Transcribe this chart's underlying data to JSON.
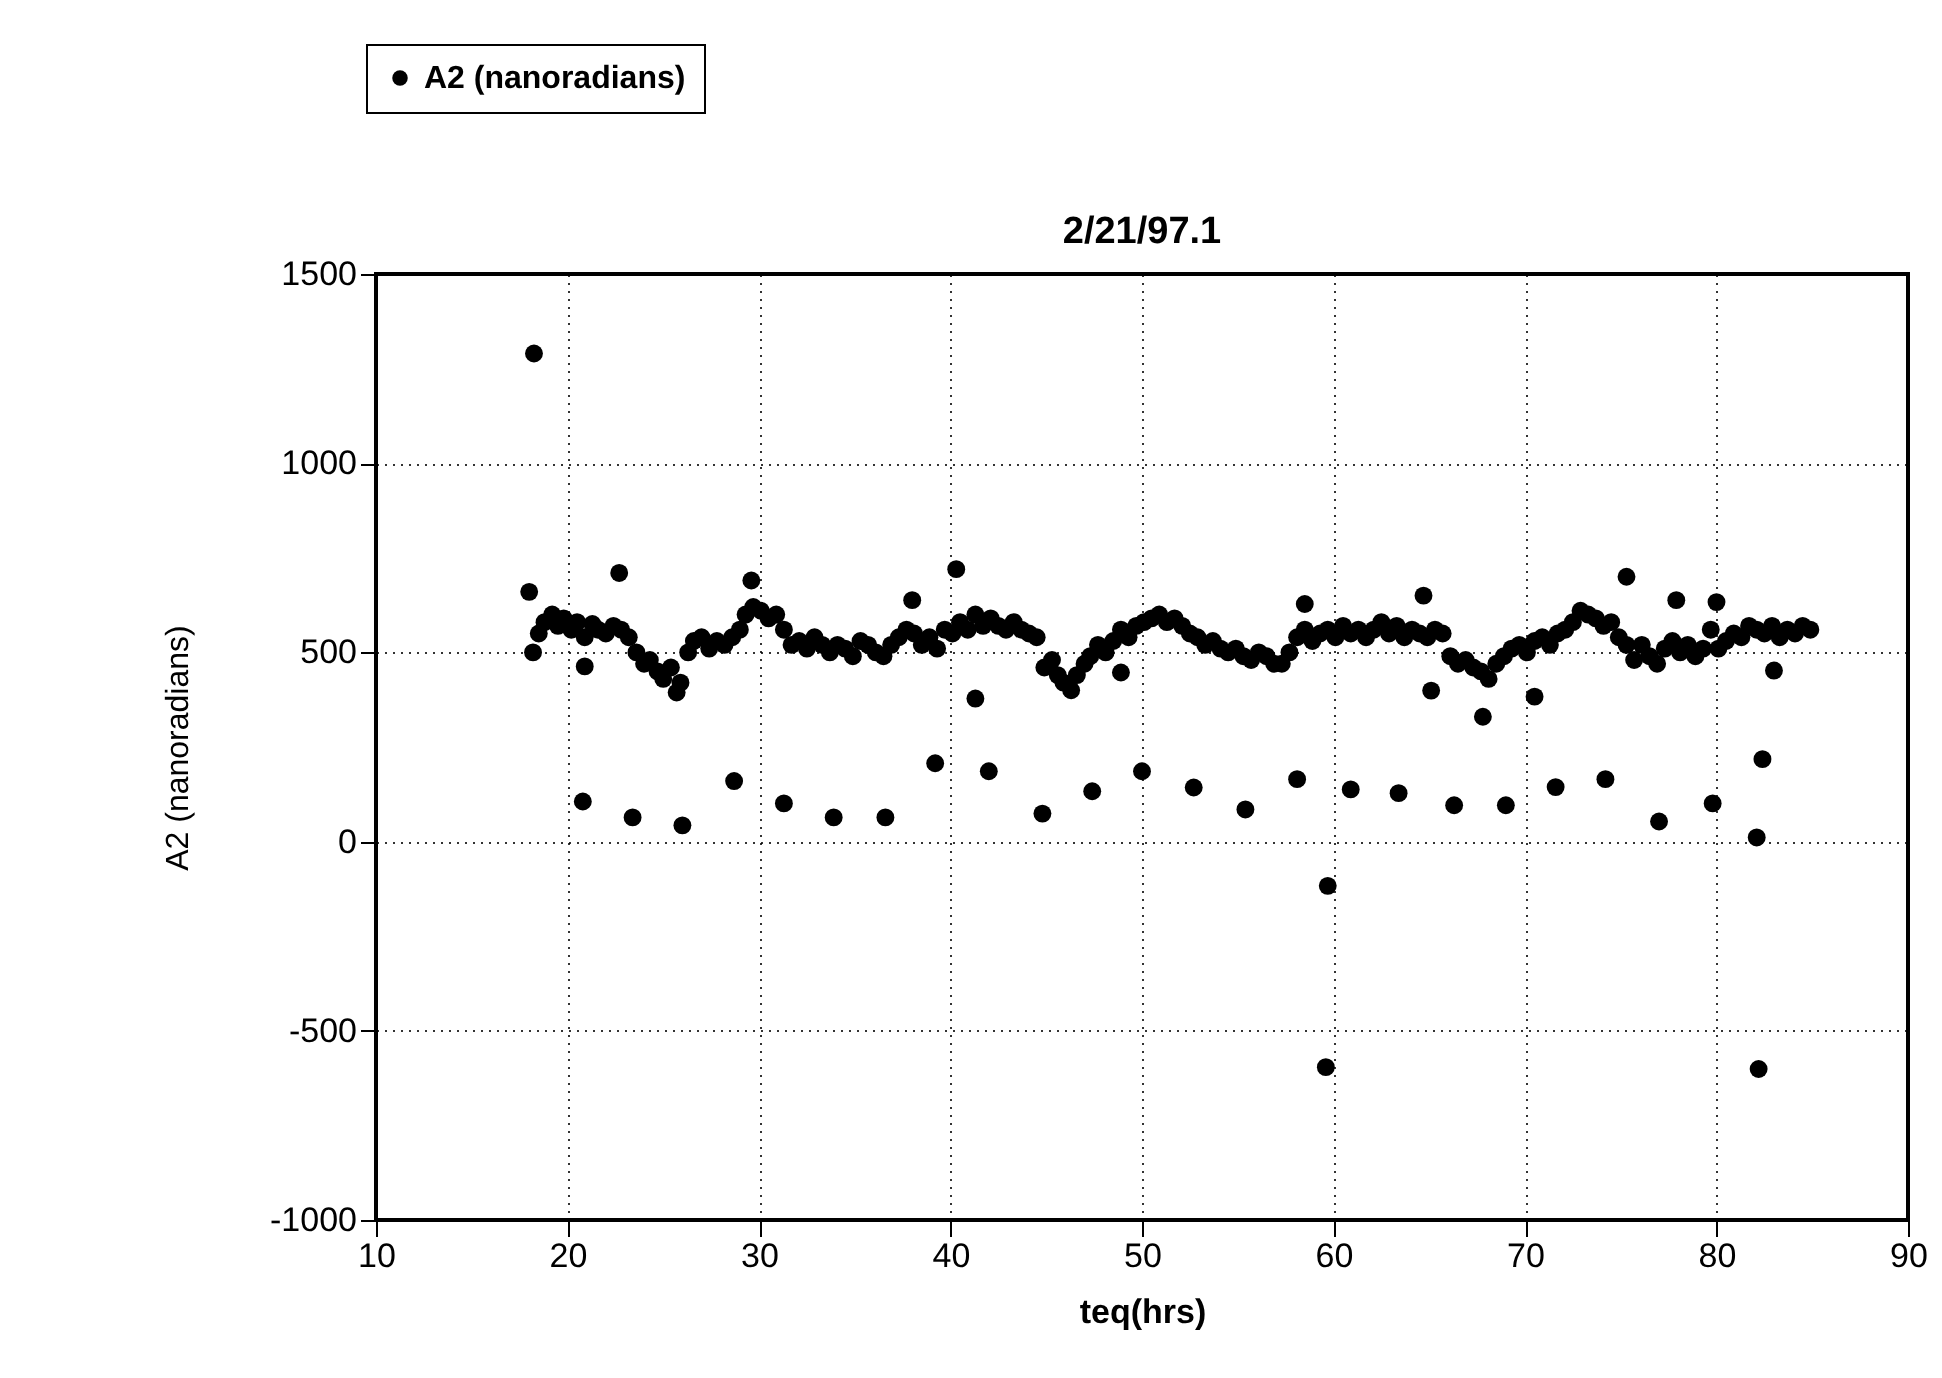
{
  "chart_data": {
    "type": "scatter",
    "title": "2/21/97.1",
    "xlabel": "teq(hrs)",
    "ylabel": "A2 (nanoradians)",
    "xlim": [
      10,
      90
    ],
    "xticks": [
      10,
      20,
      30,
      40,
      50,
      60,
      70,
      80,
      90
    ],
    "ylim": [
      -1000,
      1500
    ],
    "yticks": [
      -1000,
      -500,
      0,
      500,
      1000,
      1500
    ],
    "grid": true,
    "legend": "top left",
    "marker": "circle",
    "series": [
      {
        "name": "A2 (nanoradians)",
        "color": "#000000",
        "x": [
          18.2,
          18.5,
          18.8,
          19.2,
          19.5,
          19.8,
          20.2,
          20.5,
          20.9,
          21.3,
          21.6,
          22.0,
          22.4,
          22.8,
          23.2,
          23.6,
          24.0,
          24.3,
          24.7,
          25.0,
          25.4,
          25.9,
          26.3,
          26.6,
          27.0,
          27.4,
          27.8,
          28.2,
          28.6,
          29.0,
          29.3,
          29.7,
          30.1,
          30.5,
          30.9,
          31.3,
          31.7,
          32.1,
          32.5,
          32.9,
          33.3,
          33.7,
          34.1,
          34.5,
          34.9,
          35.3,
          35.7,
          36.1,
          36.5,
          36.9,
          37.3,
          37.7,
          38.1,
          38.5,
          38.9,
          39.3,
          39.7,
          40.1,
          40.5,
          40.9,
          41.3,
          41.7,
          42.1,
          42.5,
          42.9,
          43.3,
          43.7,
          44.1,
          44.5,
          44.9,
          45.3,
          45.6,
          45.9,
          46.3,
          46.6,
          47.0,
          47.3,
          47.7,
          48.1,
          48.5,
          48.9,
          49.3,
          49.7,
          50.1,
          50.5,
          50.9,
          51.3,
          51.7,
          52.1,
          52.5,
          52.9,
          53.3,
          53.7,
          54.1,
          54.5,
          54.9,
          55.3,
          55.7,
          56.1,
          56.5,
          56.9,
          57.3,
          57.7,
          58.1,
          58.5,
          58.9,
          59.3,
          59.7,
          60.1,
          60.5,
          60.9,
          61.3,
          61.7,
          62.1,
          62.5,
          62.9,
          63.3,
          63.7,
          64.1,
          64.5,
          64.9,
          65.3,
          65.7,
          66.1,
          66.5,
          66.9,
          67.3,
          67.7,
          68.1,
          68.5,
          68.9,
          69.3,
          69.7,
          70.1,
          70.5,
          70.9,
          71.3,
          71.7,
          72.1,
          72.5,
          72.9,
          73.3,
          73.7,
          74.1,
          74.5,
          74.9,
          75.3,
          75.7,
          76.1,
          76.5,
          76.9,
          77.3,
          77.7,
          78.1,
          78.5,
          78.9,
          79.3,
          79.7,
          80.1,
          80.5,
          80.9,
          81.3,
          81.7,
          82.1,
          82.5,
          82.9,
          83.3,
          83.7,
          84.1,
          84.5,
          84.9,
          18.25,
          18.0,
          22.7,
          20.9,
          25.7,
          20.8,
          23.4,
          26.0,
          28.7,
          31.3,
          33.9,
          36.6,
          29.6,
          40.3,
          38.0,
          41.3,
          39.2,
          42.0,
          44.8,
          47.4,
          48.9,
          50.0,
          52.7,
          55.4,
          58.1,
          59.7,
          59.6,
          60.9,
          63.4,
          58.5,
          64.7,
          65.1,
          67.8,
          70.5,
          75.3,
          77.9,
          80.0,
          83.0,
          66.3,
          69.0,
          71.6,
          74.2,
          77.0,
          79.8,
          82.4,
          82.1,
          82.2
        ],
        "values": [
          500,
          550,
          580,
          600,
          570,
          590,
          560,
          580,
          540,
          575,
          560,
          550,
          570,
          560,
          540,
          500,
          470,
          480,
          450,
          430,
          460,
          420,
          500,
          530,
          540,
          510,
          530,
          520,
          540,
          560,
          600,
          620,
          610,
          590,
          600,
          560,
          520,
          530,
          510,
          540,
          520,
          500,
          520,
          510,
          490,
          530,
          520,
          500,
          490,
          520,
          540,
          560,
          550,
          520,
          540,
          510,
          560,
          550,
          580,
          560,
          600,
          570,
          590,
          570,
          560,
          580,
          560,
          550,
          540,
          460,
          480,
          440,
          420,
          400,
          440,
          470,
          490,
          520,
          500,
          530,
          560,
          540,
          570,
          580,
          590,
          600,
          580,
          590,
          570,
          550,
          540,
          520,
          530,
          510,
          500,
          510,
          490,
          480,
          500,
          490,
          470,
          470,
          500,
          540,
          560,
          530,
          550,
          560,
          540,
          570,
          550,
          560,
          540,
          560,
          580,
          550,
          570,
          540,
          560,
          550,
          540,
          560,
          550,
          490,
          470,
          480,
          460,
          450,
          430,
          470,
          490,
          510,
          520,
          500,
          530,
          540,
          520,
          550,
          560,
          580,
          610,
          600,
          590,
          570,
          580,
          540,
          520,
          480,
          520,
          490,
          470,
          510,
          530,
          500,
          520,
          490,
          510,
          560,
          510,
          530,
          550,
          540,
          570,
          560,
          550,
          570,
          540,
          560,
          550,
          570,
          560,
          1290,
          660,
          710,
          463,
          394,
          106,
          64,
          43,
          160,
          101,
          64,
          64,
          690,
          720,
          638,
          378,
          207,
          186,
          74,
          133,
          447,
          186,
          143,
          85,
          165,
          -117,
          -596,
          138,
          128,
          628,
          650,
          399,
          330,
          383,
          700,
          638,
          633,
          452,
          96,
          96,
          144,
          165,
          53,
          101,
          218,
          11,
          -601
        ]
      }
    ]
  }
}
